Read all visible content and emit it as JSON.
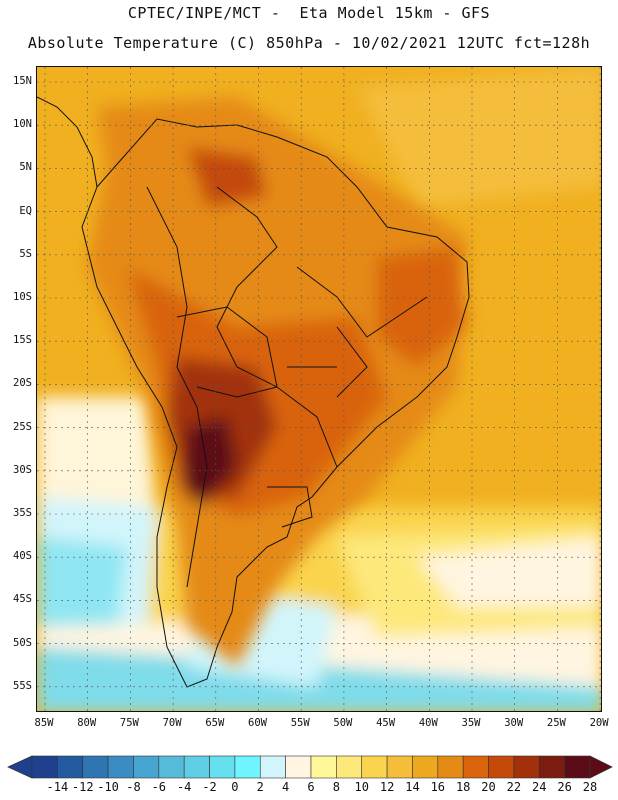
{
  "header": {
    "line1": "CPTEC/INPE/MCT -  Eta Model 15km - GFS",
    "line2": "Absolute Temperature (C) 850hPa - 10/02/2021 12UTC fct=128h"
  },
  "map": {
    "lat_labels": [
      "15N",
      "10N",
      "5N",
      "EQ",
      "5S",
      "10S",
      "15S",
      "20S",
      "25S",
      "30S",
      "35S",
      "40S",
      "45S",
      "50S",
      "55S"
    ],
    "lon_labels": [
      "85W",
      "80W",
      "75W",
      "70W",
      "65W",
      "60W",
      "55W",
      "50W",
      "45W",
      "40W",
      "35W",
      "30W",
      "25W",
      "20W"
    ],
    "gridline_style": "dotted"
  },
  "colorbar": {
    "labels": [
      "-14",
      "-12",
      "-10",
      "-8",
      "-6",
      "-4",
      "-2",
      "0",
      "2",
      "4",
      "6",
      "8",
      "10",
      "12",
      "14",
      "16",
      "18",
      "20",
      "22",
      "24",
      "26",
      "28"
    ],
    "colors": [
      "#1f3f8f",
      "#245ba0",
      "#2e75b2",
      "#3a8dc2",
      "#48a4d1",
      "#56bad9",
      "#5fcde3",
      "#66e0ee",
      "#6ff5ff",
      "#d2f5fb",
      "#fff5e0",
      "#fff79a",
      "#fde87c",
      "#fad44e",
      "#f4bd3a",
      "#eda81f",
      "#e58a14",
      "#d9640c",
      "#c44a0a",
      "#a2300a",
      "#7a1c10",
      "#5c0c18"
    ]
  }
}
